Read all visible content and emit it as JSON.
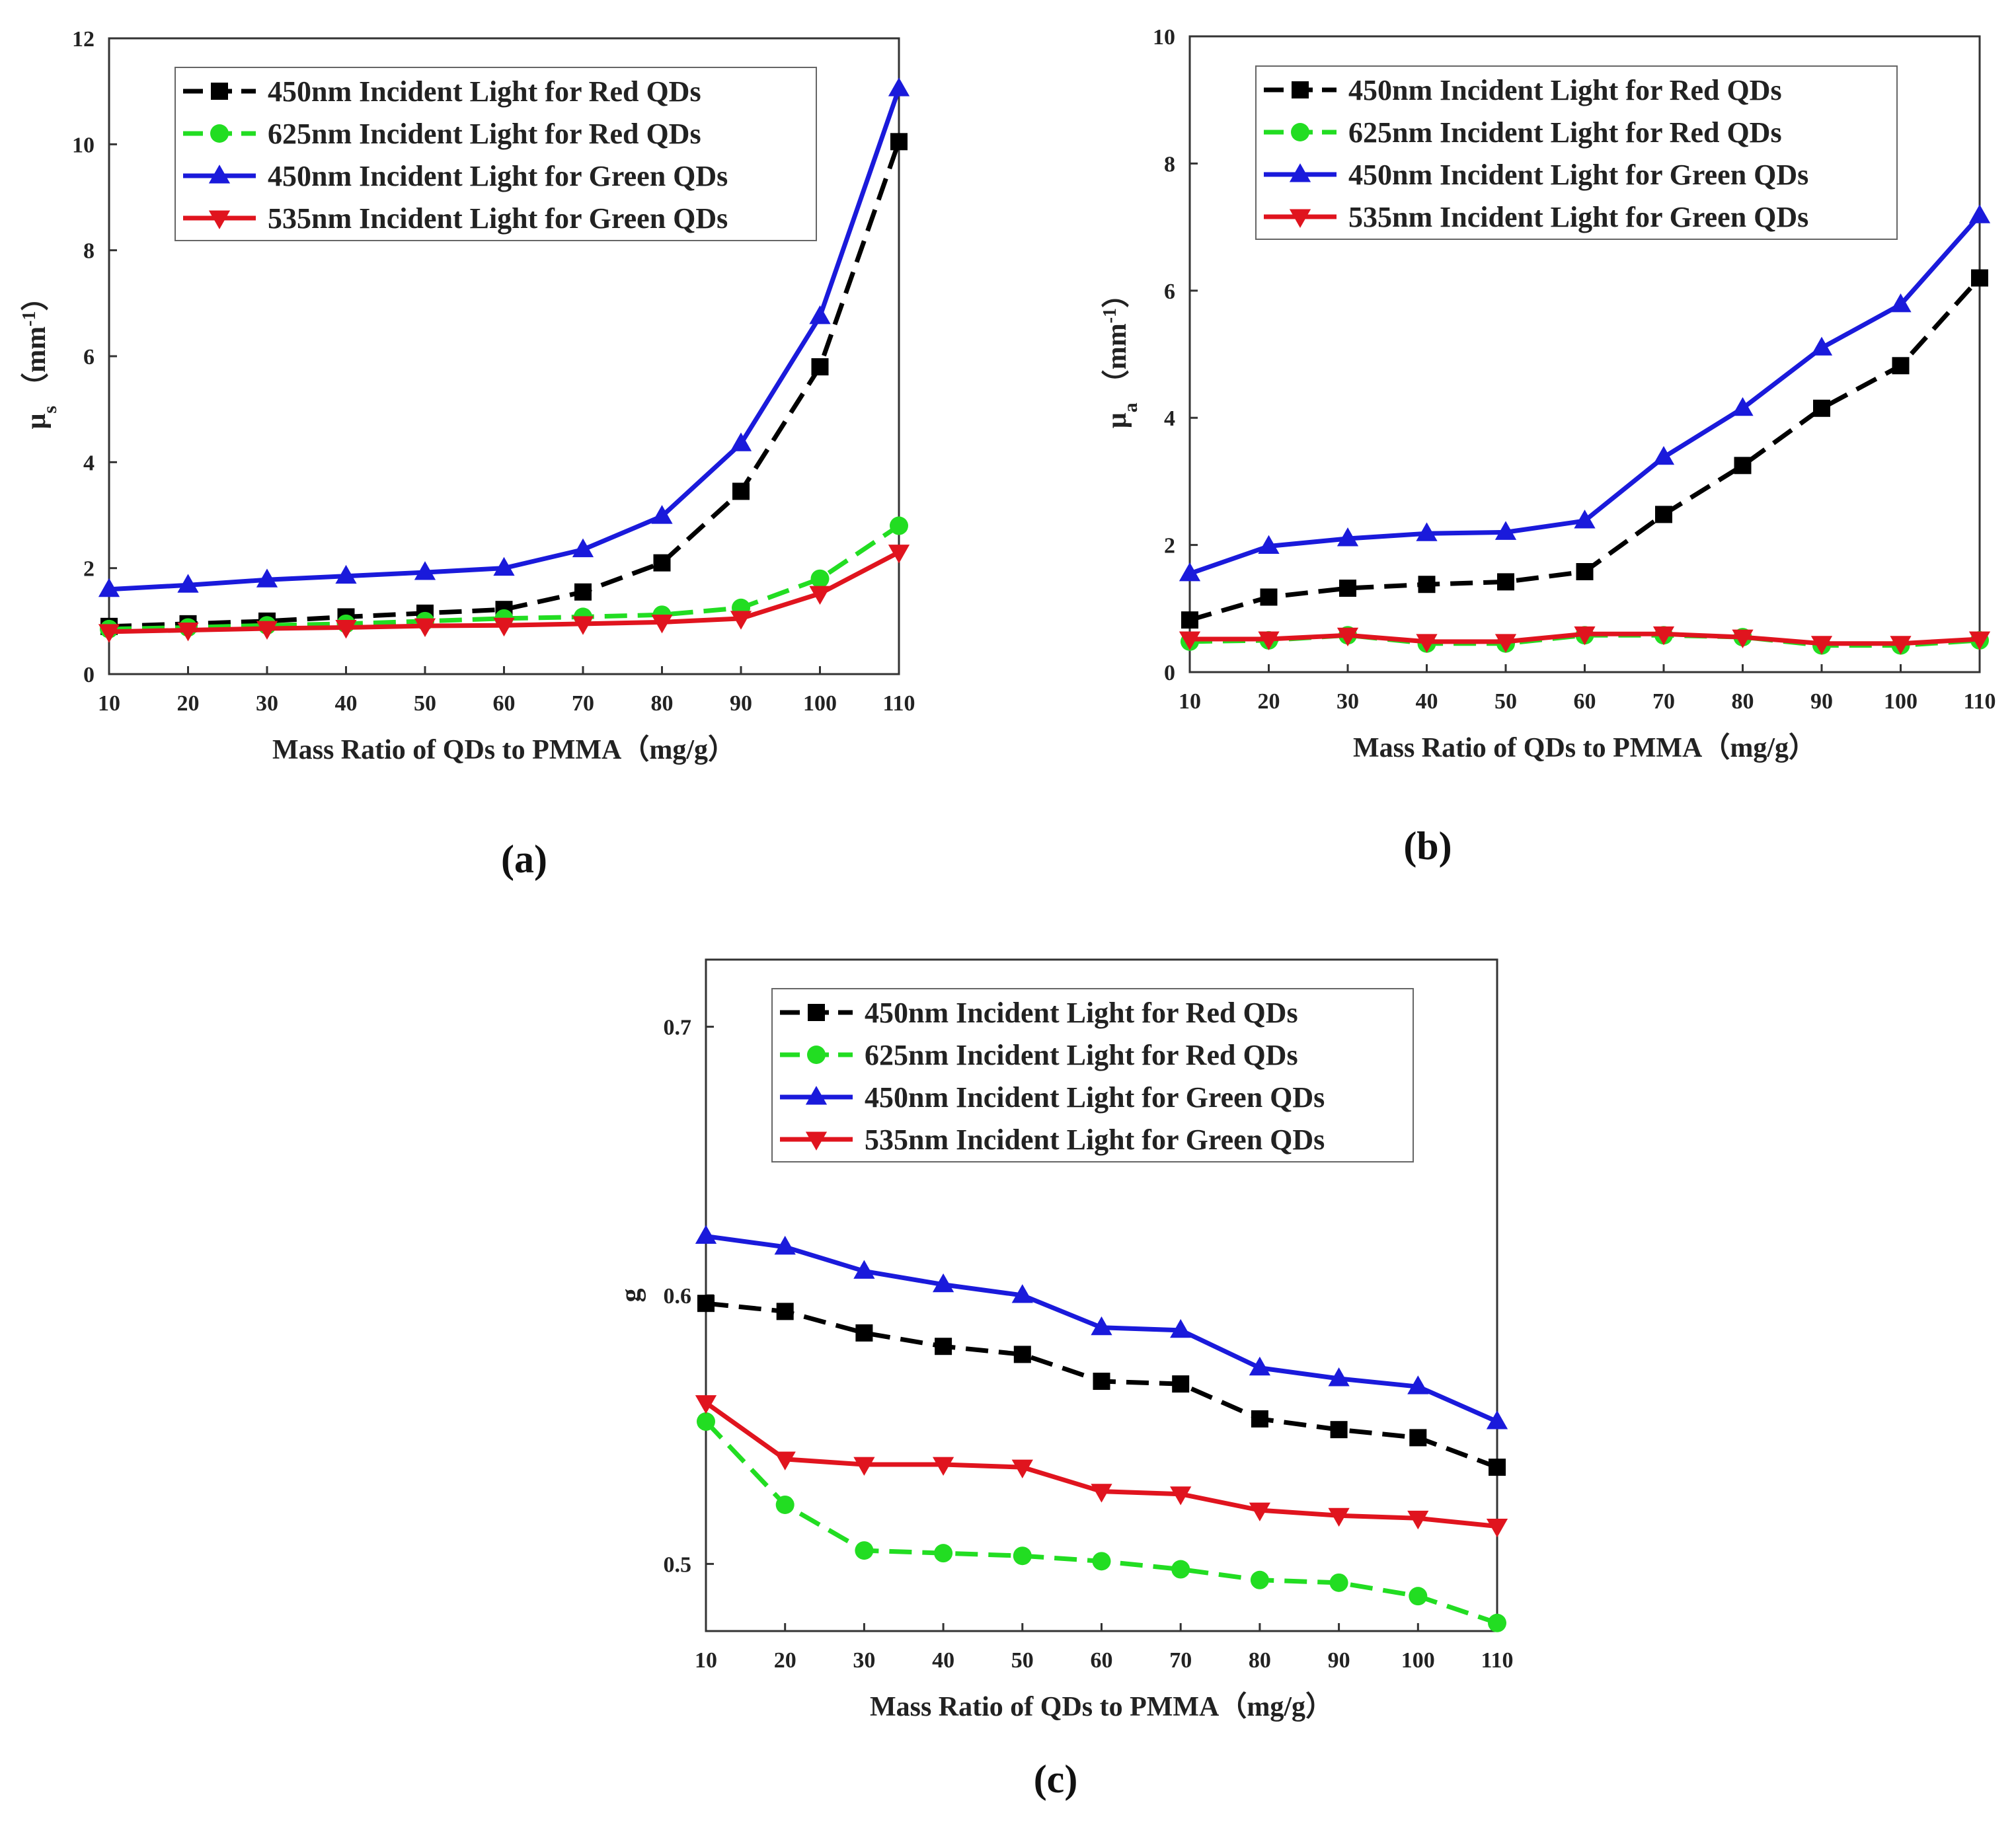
{
  "chart_data": [
    {
      "id": "a",
      "type": "line",
      "caption": "(a)",
      "xlabel": "Mass Ratio of QDs to PMMA（mg/g）",
      "ylabel_main": "μ",
      "ylabel_sub": "s",
      "ylabel_unit_pre": "（mm",
      "ylabel_unit_sup": "-1",
      "ylabel_unit_post": "）",
      "xlim": [
        10,
        110
      ],
      "ylim": [
        0,
        12
      ],
      "xticks": [
        "10",
        "20",
        "30",
        "40",
        "50",
        "60",
        "70",
        "80",
        "90",
        "100",
        "110"
      ],
      "yticks": [
        "0",
        "2",
        "4",
        "6",
        "8",
        "10",
        "12"
      ],
      "legend_position": "top-right",
      "x": [
        10,
        20,
        30,
        40,
        50,
        60,
        70,
        80,
        90,
        100,
        110
      ],
      "series": [
        {
          "name": "450nm Incident Light for Red QDs",
          "color": "#000000",
          "marker": "square",
          "dash": "dashed",
          "values": [
            0.9,
            0.95,
            1.0,
            1.08,
            1.15,
            1.22,
            1.55,
            2.1,
            3.45,
            5.8,
            10.05
          ]
        },
        {
          "name": "625nm Incident Light for Red QDs",
          "color": "#22dd22",
          "marker": "circle",
          "dash": "dashed",
          "values": [
            0.85,
            0.88,
            0.92,
            0.95,
            1.0,
            1.05,
            1.08,
            1.12,
            1.25,
            1.8,
            2.8
          ]
        },
        {
          "name": "450nm Incident Light for Green QDs",
          "color": "#1a1adb",
          "marker": "triangle-up",
          "dash": "solid",
          "values": [
            1.6,
            1.68,
            1.78,
            1.85,
            1.92,
            2.0,
            2.35,
            2.98,
            4.35,
            6.75,
            11.05
          ]
        },
        {
          "name": "535nm Incident Light for Green QDs",
          "color": "#e0141e",
          "marker": "triangle-down",
          "dash": "solid",
          "values": [
            0.8,
            0.83,
            0.86,
            0.88,
            0.91,
            0.92,
            0.95,
            0.98,
            1.05,
            1.52,
            2.3
          ]
        }
      ]
    },
    {
      "id": "b",
      "type": "line",
      "caption": "(b)",
      "xlabel": "Mass Ratio of QDs to PMMA（mg/g）",
      "ylabel_main": "μ",
      "ylabel_sub": "a",
      "ylabel_unit_pre": "（mm",
      "ylabel_unit_sup": "-1",
      "ylabel_unit_post": "）",
      "xlim": [
        10,
        110
      ],
      "ylim": [
        0,
        10
      ],
      "xticks": [
        "10",
        "20",
        "30",
        "40",
        "50",
        "60",
        "70",
        "80",
        "90",
        "100",
        "110"
      ],
      "yticks": [
        "0",
        "2",
        "4",
        "6",
        "8",
        "10"
      ],
      "legend_position": "top-right",
      "x": [
        10,
        20,
        30,
        40,
        50,
        60,
        70,
        80,
        90,
        100,
        110
      ],
      "series": [
        {
          "name": "450nm Incident Light for Red QDs",
          "color": "#000000",
          "marker": "square",
          "dash": "dashed",
          "values": [
            0.82,
            1.18,
            1.32,
            1.38,
            1.42,
            1.58,
            2.48,
            3.25,
            4.15,
            4.82,
            6.2
          ]
        },
        {
          "name": "625nm Incident Light for Red QDs",
          "color": "#22dd22",
          "marker": "circle",
          "dash": "dashed",
          "values": [
            0.48,
            0.5,
            0.58,
            0.45,
            0.45,
            0.58,
            0.58,
            0.55,
            0.42,
            0.42,
            0.5
          ]
        },
        {
          "name": "450nm Incident Light for Green QDs",
          "color": "#1a1adb",
          "marker": "triangle-up",
          "dash": "solid",
          "values": [
            1.55,
            1.98,
            2.1,
            2.18,
            2.2,
            2.38,
            3.38,
            4.15,
            5.1,
            5.78,
            7.18
          ]
        },
        {
          "name": "535nm Incident Light for Green QDs",
          "color": "#e0141e",
          "marker": "triangle-down",
          "dash": "solid",
          "values": [
            0.52,
            0.52,
            0.58,
            0.48,
            0.48,
            0.6,
            0.6,
            0.55,
            0.45,
            0.45,
            0.52
          ]
        }
      ]
    },
    {
      "id": "c",
      "type": "line",
      "caption": "(c)",
      "xlabel": "Mass Ratio of QDs to PMMA（mg/g）",
      "ylabel_main": "g",
      "ylabel_sub": "",
      "ylabel_unit_pre": "",
      "ylabel_unit_sup": "",
      "ylabel_unit_post": "",
      "xlim": [
        10,
        110
      ],
      "ylim": [
        0.475,
        0.725
      ],
      "xticks": [
        "10",
        "20",
        "30",
        "40",
        "50",
        "60",
        "70",
        "80",
        "90",
        "100",
        "110"
      ],
      "yticks": [
        "0.5",
        "0.6",
        "0.7"
      ],
      "ytick_values": [
        0.5,
        0.6,
        0.7
      ],
      "legend_position": "top-right",
      "x": [
        10,
        20,
        30,
        40,
        50,
        60,
        70,
        80,
        90,
        100,
        110
      ],
      "series": [
        {
          "name": "450nm Incident Light for Red QDs",
          "color": "#000000",
          "marker": "square",
          "dash": "dashed",
          "values": [
            0.597,
            0.594,
            0.586,
            0.581,
            0.578,
            0.568,
            0.567,
            0.554,
            0.55,
            0.547,
            0.536
          ]
        },
        {
          "name": "625nm Incident Light for Red QDs",
          "color": "#22dd22",
          "marker": "circle",
          "dash": "dashed",
          "values": [
            0.553,
            0.522,
            0.505,
            0.504,
            0.503,
            0.501,
            0.498,
            0.494,
            0.493,
            0.488,
            0.478
          ]
        },
        {
          "name": "450nm Incident Light for Green QDs",
          "color": "#1a1adb",
          "marker": "triangle-up",
          "dash": "solid",
          "values": [
            0.622,
            0.618,
            0.609,
            0.604,
            0.6,
            0.588,
            0.587,
            0.573,
            0.569,
            0.566,
            0.553
          ]
        },
        {
          "name": "535nm Incident Light for Green QDs",
          "color": "#e0141e",
          "marker": "triangle-down",
          "dash": "solid",
          "values": [
            0.56,
            0.539,
            0.537,
            0.537,
            0.536,
            0.527,
            0.526,
            0.52,
            0.518,
            0.517,
            0.514
          ]
        }
      ]
    }
  ]
}
